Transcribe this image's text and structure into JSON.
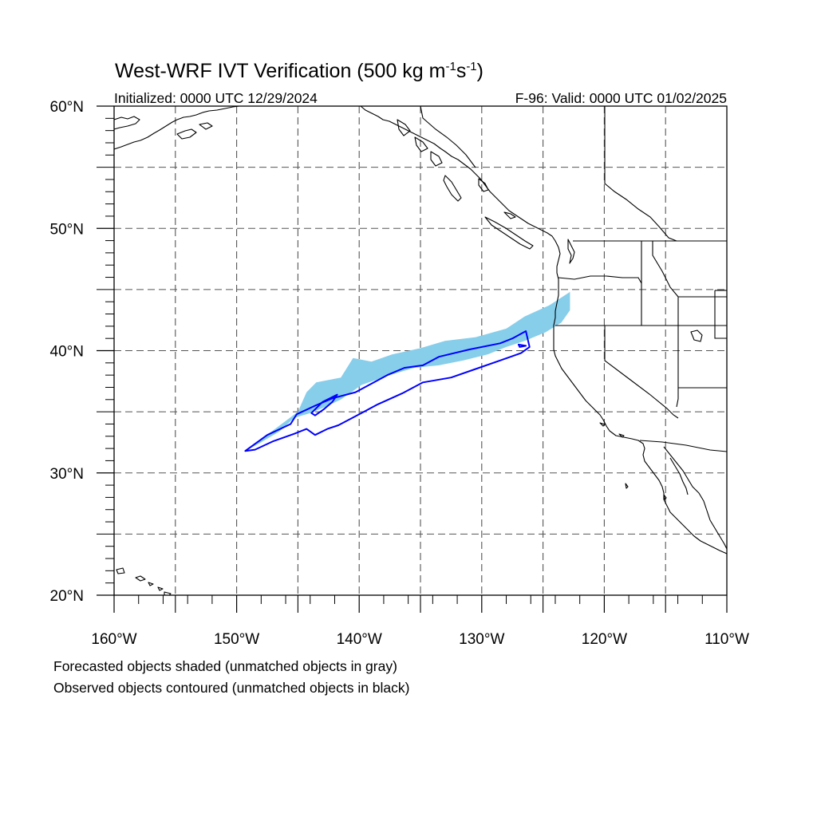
{
  "title": {
    "main": "West-WRF IVT Verification (500 kg m",
    "sup1": "-1",
    "mid": "s",
    "sup2": "-1",
    "end": ")"
  },
  "initialized_label": "Initialized: 0000 UTC 12/29/2024",
  "valid_label": "F-96: Valid: 0000 UTC 01/02/2025",
  "lat_ticks": [
    {
      "value": 60,
      "label": "60°N"
    },
    {
      "value": 50,
      "label": "50°N"
    },
    {
      "value": 40,
      "label": "40°N"
    },
    {
      "value": 30,
      "label": "30°N"
    },
    {
      "value": 20,
      "label": "20°N"
    }
  ],
  "lon_ticks": [
    {
      "value": -160,
      "label": "160°W"
    },
    {
      "value": -150,
      "label": "150°W"
    },
    {
      "value": -140,
      "label": "140°W"
    },
    {
      "value": -130,
      "label": "130°W"
    },
    {
      "value": -120,
      "label": "120°W"
    },
    {
      "value": -110,
      "label": "110°W"
    }
  ],
  "map_extent": {
    "lon": [
      -160,
      -110
    ],
    "lat": [
      20,
      60
    ]
  },
  "gridline_spacing_deg": 5,
  "colors": {
    "forecast_fill": "#87ceeb",
    "observed_contour": "#0000ff",
    "coastline": "#000000",
    "gridline": "#555555"
  },
  "forecast_objects": [
    {
      "name": "forecast-ivt-object",
      "lonlat": [
        [
          -149.3,
          31.8
        ],
        [
          -147.0,
          33.5
        ],
        [
          -145.0,
          35.0
        ],
        [
          -144.3,
          36.6
        ],
        [
          -143.5,
          37.4
        ],
        [
          -141.5,
          37.8
        ],
        [
          -140.5,
          39.4
        ],
        [
          -139.0,
          39.1
        ],
        [
          -137.3,
          39.7
        ],
        [
          -135.0,
          40.2
        ],
        [
          -133.0,
          40.8
        ],
        [
          -130.5,
          41.1
        ],
        [
          -128.0,
          41.8
        ],
        [
          -126.5,
          42.8
        ],
        [
          -124.5,
          43.7
        ],
        [
          -122.8,
          44.8
        ],
        [
          -122.8,
          43.3
        ],
        [
          -123.5,
          42.3
        ],
        [
          -124.8,
          41.5
        ],
        [
          -126.5,
          40.8
        ],
        [
          -128.0,
          40.3
        ],
        [
          -129.5,
          39.7
        ],
        [
          -131.5,
          39.2
        ],
        [
          -133.5,
          38.8
        ],
        [
          -135.5,
          38.6
        ],
        [
          -137.5,
          38.0
        ],
        [
          -139.8,
          37.2
        ],
        [
          -141.5,
          36.0
        ],
        [
          -143.0,
          35.3
        ],
        [
          -144.0,
          34.9
        ],
        [
          -145.3,
          34.5
        ],
        [
          -146.5,
          33.4
        ],
        [
          -148.0,
          32.5
        ]
      ]
    }
  ],
  "observed_objects": [
    {
      "name": "observed-ivt-contour",
      "lonlat": [
        [
          -149.3,
          31.8
        ],
        [
          -147.5,
          33.1
        ],
        [
          -145.6,
          34.0
        ],
        [
          -145.1,
          34.8
        ],
        [
          -143.6,
          35.5
        ],
        [
          -142.2,
          36.1
        ],
        [
          -140.3,
          36.6
        ],
        [
          -139.0,
          37.3
        ],
        [
          -137.7,
          38.0
        ],
        [
          -136.3,
          38.6
        ],
        [
          -134.8,
          38.8
        ],
        [
          -133.5,
          39.5
        ],
        [
          -131.0,
          40.1
        ],
        [
          -128.5,
          40.6
        ],
        [
          -127.5,
          41.0
        ],
        [
          -126.4,
          41.6
        ],
        [
          -126.1,
          40.3
        ],
        [
          -126.8,
          39.8
        ],
        [
          -128.5,
          39.2
        ],
        [
          -130.5,
          38.5
        ],
        [
          -132.5,
          37.8
        ],
        [
          -134.8,
          37.4
        ],
        [
          -136.5,
          36.5
        ],
        [
          -138.5,
          35.6
        ],
        [
          -140.0,
          34.8
        ],
        [
          -141.7,
          33.9
        ],
        [
          -142.6,
          33.6
        ],
        [
          -143.6,
          33.1
        ],
        [
          -144.3,
          33.6
        ],
        [
          -145.3,
          33.2
        ],
        [
          -147.0,
          32.6
        ],
        [
          -148.5,
          31.9
        ]
      ]
    },
    {
      "name": "observed-ivt-inner-contour",
      "lonlat": [
        [
          -143.9,
          34.9
        ],
        [
          -143.0,
          35.8
        ],
        [
          -141.8,
          36.4
        ],
        [
          -142.2,
          35.8
        ],
        [
          -142.9,
          35.2
        ],
        [
          -143.6,
          34.7
        ]
      ]
    },
    {
      "name": "observed-ivt-small-contour",
      "lonlat": [
        [
          -127.0,
          40.5
        ],
        [
          -126.4,
          40.4
        ],
        [
          -126.9,
          40.3
        ]
      ]
    }
  ],
  "captions": [
    "Forecasted objects shaded (unmatched objects in gray)",
    "Observed objects contoured (unmatched objects in black)"
  ]
}
